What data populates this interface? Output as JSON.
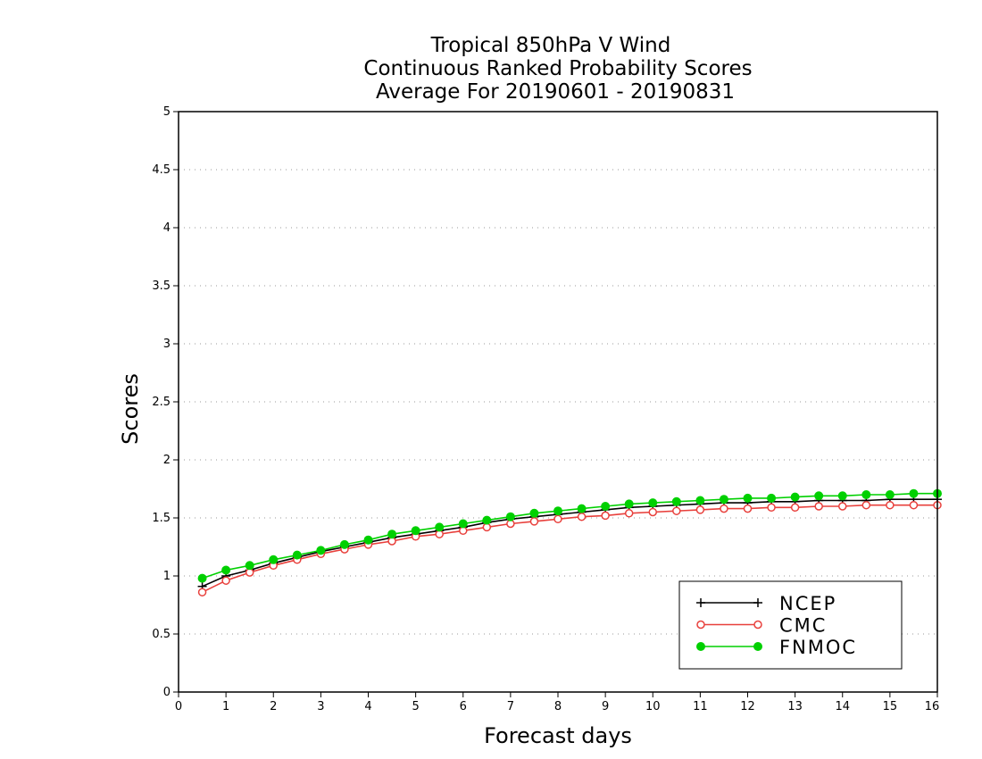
{
  "chart_data": {
    "type": "line",
    "title_lines": [
      "Tropical 850hPa V Wind",
      "Continuous Ranked Probability Scores",
      "Average For 20190601 - 20190831"
    ],
    "xlabel": "Forecast days",
    "ylabel": "Scores",
    "xlim": [
      0,
      16
    ],
    "ylim": [
      0,
      5
    ],
    "xticks": [
      0,
      1,
      2,
      3,
      4,
      5,
      6,
      7,
      8,
      9,
      10,
      11,
      12,
      13,
      14,
      15,
      16
    ],
    "yticks": [
      0,
      0.5,
      1,
      1.5,
      2,
      2.5,
      3,
      3.5,
      4,
      4.5,
      5
    ],
    "ytick_labels": [
      "0",
      "0.5",
      "1",
      "1.5",
      "2",
      "2.5",
      "3",
      "3.5",
      "4",
      "4.5",
      "5"
    ],
    "grid": "horizontal dotted",
    "legend_position": "bottom-right",
    "x": [
      0.5,
      1,
      1.5,
      2,
      2.5,
      3,
      3.5,
      4,
      4.5,
      5,
      5.5,
      6,
      6.5,
      7,
      7.5,
      8,
      8.5,
      9,
      9.5,
      10,
      10.5,
      11,
      11.5,
      12,
      12.5,
      13,
      13.5,
      14,
      14.5,
      15,
      15.5,
      16
    ],
    "series": [
      {
        "name": "NCEP",
        "color": "#000000",
        "marker": "plus",
        "values": [
          0.91,
          1.0,
          1.05,
          1.11,
          1.16,
          1.21,
          1.25,
          1.29,
          1.33,
          1.36,
          1.39,
          1.42,
          1.46,
          1.49,
          1.51,
          1.53,
          1.55,
          1.57,
          1.59,
          1.6,
          1.61,
          1.62,
          1.63,
          1.63,
          1.64,
          1.64,
          1.65,
          1.65,
          1.65,
          1.66,
          1.66,
          1.66
        ]
      },
      {
        "name": "CMC",
        "color": "#e8403c",
        "marker": "open-circle",
        "values": [
          0.86,
          0.96,
          1.03,
          1.09,
          1.14,
          1.19,
          1.23,
          1.27,
          1.3,
          1.34,
          1.36,
          1.39,
          1.42,
          1.45,
          1.47,
          1.49,
          1.51,
          1.52,
          1.54,
          1.55,
          1.56,
          1.57,
          1.58,
          1.58,
          1.59,
          1.59,
          1.6,
          1.6,
          1.61,
          1.61,
          1.61,
          1.61
        ]
      },
      {
        "name": "FNMOC",
        "color": "#00d000",
        "marker": "filled-circle",
        "values": [
          0.98,
          1.05,
          1.09,
          1.14,
          1.18,
          1.22,
          1.27,
          1.31,
          1.36,
          1.39,
          1.42,
          1.45,
          1.48,
          1.51,
          1.54,
          1.56,
          1.58,
          1.6,
          1.62,
          1.63,
          1.64,
          1.65,
          1.66,
          1.67,
          1.67,
          1.68,
          1.69,
          1.69,
          1.7,
          1.7,
          1.71,
          1.71
        ]
      }
    ]
  }
}
